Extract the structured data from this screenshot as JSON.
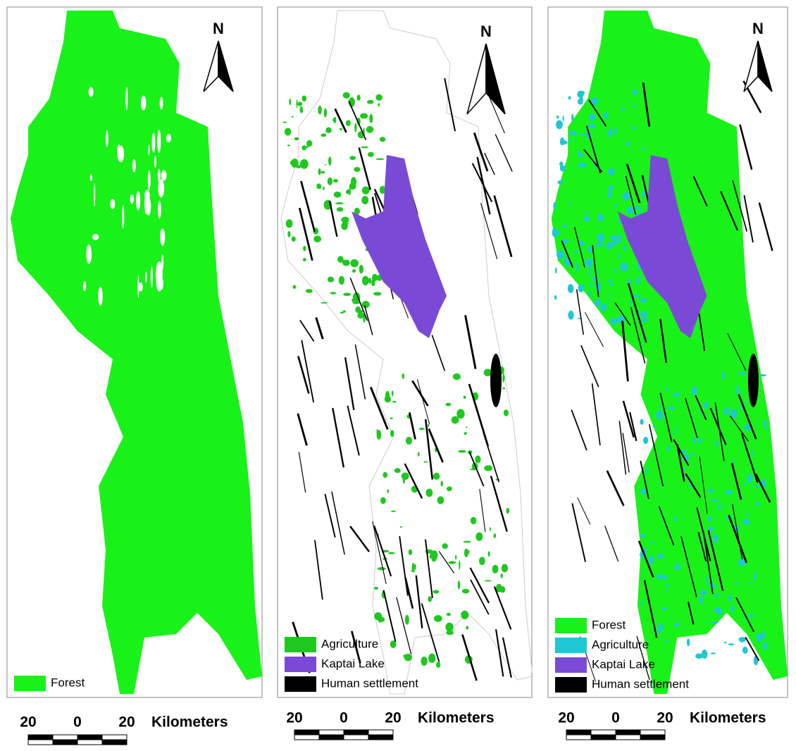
{
  "panels": [
    {
      "north": "N",
      "legend": [
        {
          "label": "Forest",
          "color": "#19f219"
        }
      ],
      "scale_bar": {
        "labels": [
          20,
          0,
          20
        ],
        "unit": "Kilometers"
      }
    },
    {
      "north": "N",
      "legend": [
        {
          "label": "Agriculture",
          "color": "#1ec81e"
        },
        {
          "label": "Kaptai Lake",
          "color": "#7a4ad6"
        },
        {
          "label": "Human settlement",
          "color": "#000000"
        }
      ],
      "scale_bar": {
        "labels": [
          20,
          0,
          20
        ],
        "unit": "Kilometers"
      }
    },
    {
      "north": "N",
      "legend": [
        {
          "label": "Forest",
          "color": "#19f219"
        },
        {
          "label": "Agriculture",
          "color": "#1ec8d2"
        },
        {
          "label": "Kaptai Lake",
          "color": "#7a4ad6"
        },
        {
          "label": "Human settlement",
          "color": "#000000"
        }
      ],
      "scale_bar": {
        "labels": [
          20,
          0,
          20
        ],
        "unit": "Kilometers"
      }
    }
  ]
}
